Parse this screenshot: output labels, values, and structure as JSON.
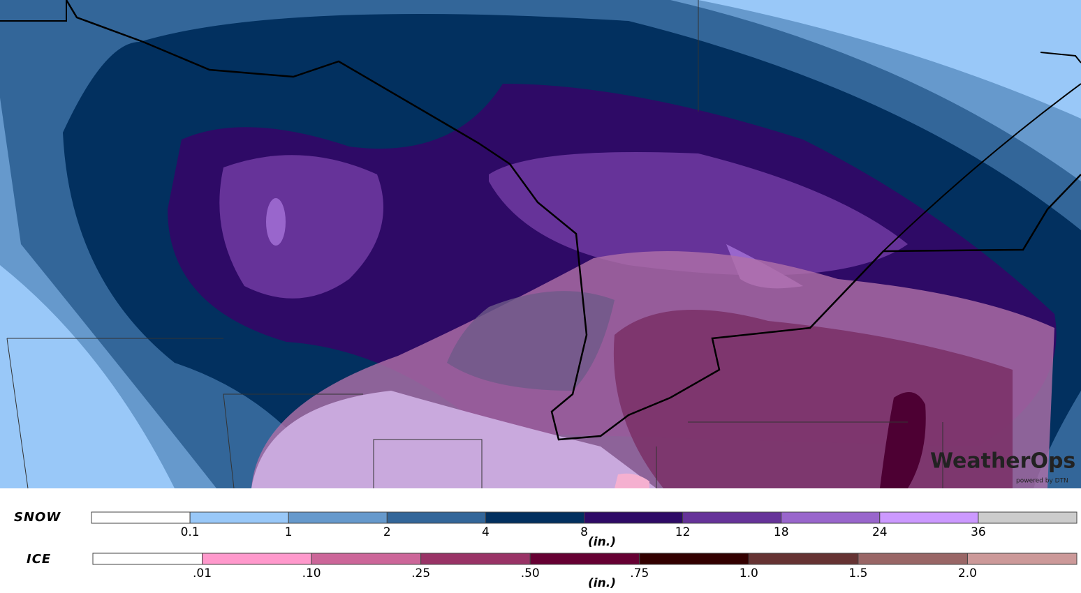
{
  "legend": {
    "snow": {
      "title": "SNOW",
      "unit": "(in.)",
      "labels": [
        "0.1",
        "1",
        "2",
        "4",
        "8",
        "12",
        "18",
        "24",
        "36"
      ],
      "colors": [
        "#ffffff",
        "#99c8f8",
        "#6699cc",
        "#336699",
        "#02305f",
        "#2e0a66",
        "#663399",
        "#9966cc",
        "#cc99ff",
        "#cccccc"
      ]
    },
    "ice": {
      "title": "ICE",
      "unit": "(in.)",
      "labels": [
        ".01",
        ".10",
        ".25",
        ".50",
        ".75",
        "1.0",
        "1.5",
        "2.0"
      ],
      "colors": [
        "#ffffff",
        "#ff99cc",
        "#cc6699",
        "#993366",
        "#660033",
        "#330000",
        "#663333",
        "#996666",
        "#cc9999"
      ]
    }
  },
  "logo": {
    "name": "WeatherOps",
    "tagline": "powered by DTN"
  }
}
